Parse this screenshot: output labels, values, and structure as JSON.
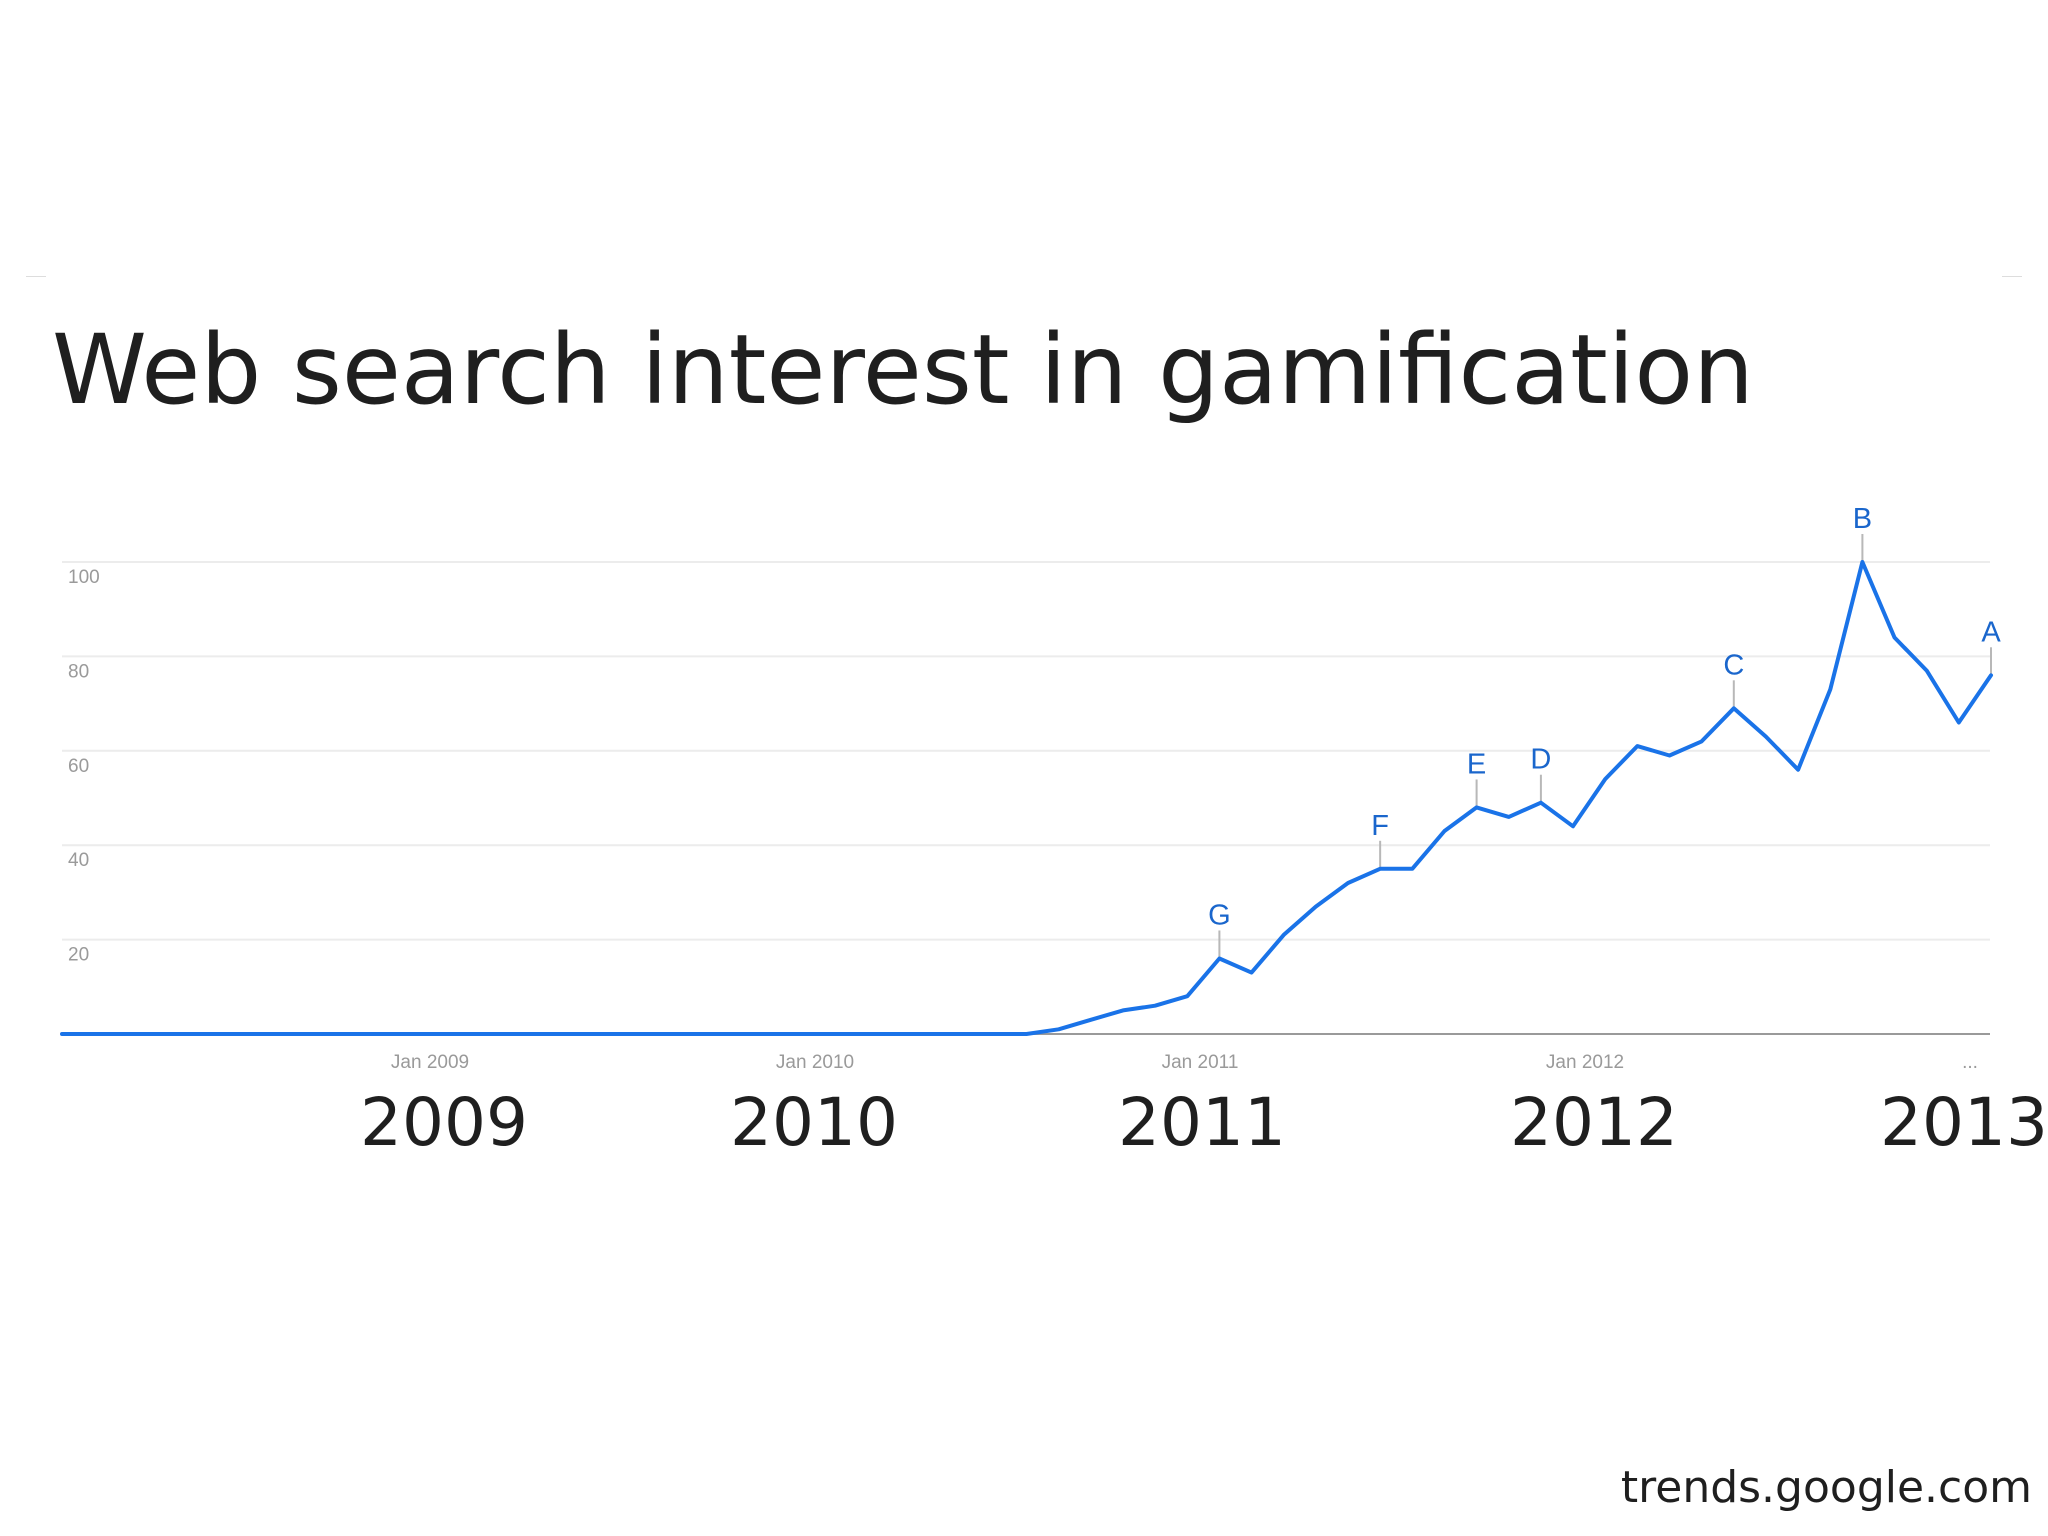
{
  "title": "Web search interest in gamification",
  "source": "trends.google.com",
  "year_labels": [
    "2009",
    "2010",
    "2011",
    "2012",
    "2013"
  ],
  "chart_data": {
    "type": "line",
    "title": "Web search interest in gamification",
    "xlabel": "",
    "ylabel": "",
    "ylim": [
      0,
      100
    ],
    "y_ticks": [
      20,
      40,
      60,
      80,
      100
    ],
    "x_tick_labels": [
      "Jan 2009",
      "Jan 2010",
      "Jan 2011",
      "Jan 2012",
      "..."
    ],
    "grid": true,
    "line_color": "#1a73e8",
    "series": [
      {
        "x": [
          "2008-02",
          "2008-03",
          "2008-04",
          "2008-05",
          "2008-06",
          "2008-07",
          "2008-08",
          "2008-09",
          "2008-10",
          "2008-11",
          "2008-12",
          "2009-01",
          "2009-02",
          "2009-03",
          "2009-04",
          "2009-05",
          "2009-06",
          "2009-07",
          "2009-08",
          "2009-09",
          "2009-10",
          "2009-11",
          "2009-12",
          "2010-01",
          "2010-02",
          "2010-03",
          "2010-04",
          "2010-05",
          "2010-06",
          "2010-07",
          "2010-08",
          "2010-09",
          "2010-10",
          "2010-11",
          "2010-12",
          "2011-01",
          "2011-02",
          "2011-03",
          "2011-04",
          "2011-05",
          "2011-06",
          "2011-07",
          "2011-08",
          "2011-09",
          "2011-10",
          "2011-11",
          "2011-12",
          "2012-01",
          "2012-02",
          "2012-03",
          "2012-04",
          "2012-05",
          "2012-06",
          "2012-07",
          "2012-08",
          "2012-09",
          "2012-10",
          "2012-11",
          "2012-12",
          "2013-01",
          "2013-02",
          "2013-03",
          "2013-04"
        ],
        "values": [
          0,
          0,
          0,
          0,
          0,
          0,
          0,
          0,
          0,
          0,
          0,
          0,
          0,
          0,
          0,
          0,
          0,
          0,
          0,
          0,
          0,
          0,
          0,
          0,
          0,
          0,
          0,
          0,
          0,
          0,
          0,
          1,
          3,
          5,
          6,
          8,
          16,
          13,
          21,
          27,
          32,
          35,
          35,
          43,
          48,
          46,
          49,
          44,
          54,
          61,
          59,
          62,
          69,
          63,
          56,
          73,
          100,
          84,
          77,
          66,
          76,
          null,
          null
        ]
      }
    ],
    "annotations": [
      {
        "label": "G",
        "x": "2011-02",
        "y": 16
      },
      {
        "label": "F",
        "x": "2011-07",
        "y": 35
      },
      {
        "label": "E",
        "x": "2011-10",
        "y": 48
      },
      {
        "label": "D",
        "x": "2011-12",
        "y": 49
      },
      {
        "label": "C",
        "x": "2012-06",
        "y": 69
      },
      {
        "label": "B",
        "x": "2012-10",
        "y": 100
      },
      {
        "label": "A",
        "x": "2013-02",
        "y": 76
      }
    ]
  }
}
